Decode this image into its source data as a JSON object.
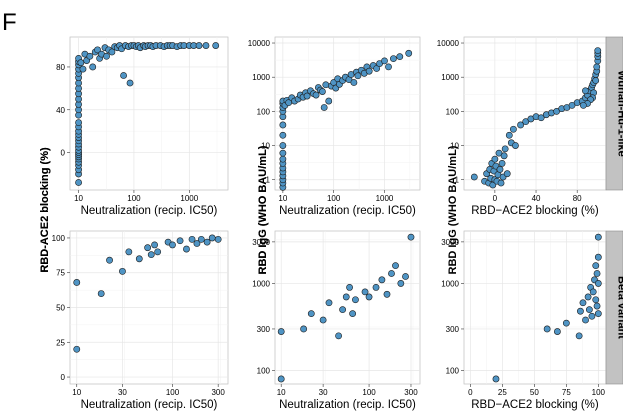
{
  "figure": {
    "panel_letter": "F",
    "strips": [
      "Wuhan-Hu-1-like",
      "Beta variant"
    ],
    "colors": {
      "point_fill": "#4f94c4",
      "point_stroke": "#1c1c1c",
      "strip_bg": "#c2c2c2",
      "grid": "#e6e6e6"
    }
  },
  "chart_data": [
    {
      "type": "scatter",
      "row": "Wuhan-Hu-1-like",
      "col": 1,
      "xlabel": "Neutralization (recip. IC50)",
      "ylabel": "RBD-ACE2 blocking (%)",
      "xscale": "log",
      "xlim": [
        7,
        5000
      ],
      "xticks": [
        10,
        100,
        1000
      ],
      "xticklabels": [
        "10",
        "100",
        "1000"
      ],
      "yscale": "linear",
      "ylim": [
        -35,
        108
      ],
      "yticks": [
        0,
        40,
        80
      ],
      "yticklabels": [
        "0",
        "40",
        "80"
      ],
      "points": [
        [
          10,
          -28
        ],
        [
          10,
          -20
        ],
        [
          10,
          -16
        ],
        [
          10,
          -12
        ],
        [
          10,
          -9
        ],
        [
          10,
          -6
        ],
        [
          10,
          -4
        ],
        [
          10,
          -2
        ],
        [
          10,
          0
        ],
        [
          10,
          2
        ],
        [
          10,
          5
        ],
        [
          10,
          8
        ],
        [
          10,
          11
        ],
        [
          10,
          14
        ],
        [
          10,
          17
        ],
        [
          10,
          20
        ],
        [
          10,
          24
        ],
        [
          10,
          28
        ],
        [
          10,
          35
        ],
        [
          10,
          40
        ],
        [
          10,
          45
        ],
        [
          10,
          50
        ],
        [
          10,
          55
        ],
        [
          10,
          60
        ],
        [
          10,
          65
        ],
        [
          10,
          70
        ],
        [
          10,
          74
        ],
        [
          10,
          78
        ],
        [
          10,
          82
        ],
        [
          10,
          85
        ],
        [
          10,
          88
        ],
        [
          11,
          84
        ],
        [
          12,
          78
        ],
        [
          13,
          92
        ],
        [
          14,
          86
        ],
        [
          16,
          90
        ],
        [
          18,
          80
        ],
        [
          20,
          94
        ],
        [
          22,
          96
        ],
        [
          24,
          88
        ],
        [
          26,
          92
        ],
        [
          30,
          98
        ],
        [
          32,
          90
        ],
        [
          35,
          96
        ],
        [
          40,
          94
        ],
        [
          45,
          99
        ],
        [
          50,
          98
        ],
        [
          55,
          100
        ],
        [
          60,
          97
        ],
        [
          65,
          72
        ],
        [
          70,
          100
        ],
        [
          80,
          99
        ],
        [
          85,
          65
        ],
        [
          90,
          100
        ],
        [
          100,
          100
        ],
        [
          110,
          99
        ],
        [
          120,
          100
        ],
        [
          130,
          98
        ],
        [
          150,
          100
        ],
        [
          160,
          99
        ],
        [
          180,
          100
        ],
        [
          200,
          100
        ],
        [
          220,
          99
        ],
        [
          250,
          100
        ],
        [
          300,
          100
        ],
        [
          350,
          99
        ],
        [
          400,
          100
        ],
        [
          450,
          100
        ],
        [
          500,
          100
        ],
        [
          600,
          99
        ],
        [
          700,
          100
        ],
        [
          800,
          100
        ],
        [
          1000,
          100
        ],
        [
          1200,
          100
        ],
        [
          1500,
          100
        ],
        [
          2000,
          100
        ],
        [
          3000,
          100
        ]
      ]
    },
    {
      "type": "scatter",
      "row": "Wuhan-Hu-1-like",
      "col": 2,
      "xlabel": "Neutralization (recip. IC50)",
      "ylabel": "RBD IgG (WHO BAU/mL)",
      "xscale": "log",
      "xlim": [
        7,
        5000
      ],
      "xticks": [
        10,
        100,
        1000
      ],
      "xticklabels": [
        "10",
        "100",
        "1000"
      ],
      "yscale": "log",
      "ylim": [
        0.5,
        15000
      ],
      "yticks": [
        1,
        10,
        100,
        1000,
        10000
      ],
      "yticklabels": [
        "1",
        "10",
        "100",
        "1000",
        "10000"
      ],
      "points": [
        [
          10,
          0.6
        ],
        [
          10,
          0.8
        ],
        [
          10,
          1
        ],
        [
          10,
          1.3
        ],
        [
          10,
          1.7
        ],
        [
          10,
          2.2
        ],
        [
          10,
          3
        ],
        [
          10,
          4
        ],
        [
          10,
          6
        ],
        [
          10,
          10
        ],
        [
          10,
          20
        ],
        [
          10,
          40
        ],
        [
          10,
          70
        ],
        [
          10,
          100
        ],
        [
          10,
          130
        ],
        [
          10,
          170
        ],
        [
          10,
          200
        ],
        [
          11,
          150
        ],
        [
          12,
          210
        ],
        [
          13,
          180
        ],
        [
          15,
          250
        ],
        [
          17,
          200
        ],
        [
          20,
          230
        ],
        [
          22,
          300
        ],
        [
          25,
          260
        ],
        [
          28,
          350
        ],
        [
          30,
          280
        ],
        [
          35,
          400
        ],
        [
          40,
          330
        ],
        [
          45,
          300
        ],
        [
          50,
          500
        ],
        [
          55,
          420
        ],
        [
          60,
          380
        ],
        [
          65,
          130
        ],
        [
          70,
          600
        ],
        [
          80,
          200
        ],
        [
          90,
          550
        ],
        [
          100,
          700
        ],
        [
          110,
          480
        ],
        [
          120,
          900
        ],
        [
          130,
          620
        ],
        [
          150,
          800
        ],
        [
          170,
          1000
        ],
        [
          200,
          850
        ],
        [
          220,
          1200
        ],
        [
          250,
          700
        ],
        [
          280,
          1400
        ],
        [
          300,
          1100
        ],
        [
          350,
          1600
        ],
        [
          400,
          1300
        ],
        [
          450,
          2000
        ],
        [
          500,
          1500
        ],
        [
          600,
          2200
        ],
        [
          700,
          1800
        ],
        [
          800,
          2500
        ],
        [
          1000,
          3000
        ],
        [
          1200,
          2000
        ],
        [
          1500,
          3500
        ],
        [
          2000,
          4000
        ],
        [
          3000,
          5000
        ]
      ]
    },
    {
      "type": "scatter",
      "row": "Wuhan-Hu-1-like",
      "col": 3,
      "xlabel": "RBD−ACE2 blocking (%)",
      "ylabel": "",
      "xscale": "linear",
      "xlim": [
        -30,
        108
      ],
      "xticks": [
        0,
        40,
        80
      ],
      "xticklabels": [
        "0",
        "40",
        "80"
      ],
      "yscale": "log",
      "ylim": [
        0.5,
        15000
      ],
      "yticks": [
        1,
        10,
        100,
        1000,
        10000
      ],
      "yticklabels": [
        "1",
        "10",
        "100",
        "1000",
        "10000"
      ],
      "points": [
        [
          -20,
          1.2
        ],
        [
          -10,
          0.9
        ],
        [
          -8,
          1.5
        ],
        [
          -6,
          0.8
        ],
        [
          -5,
          2
        ],
        [
          -4,
          1.1
        ],
        [
          -3,
          3
        ],
        [
          -2,
          0.7
        ],
        [
          -1,
          1.8
        ],
        [
          0,
          4
        ],
        [
          0,
          1
        ],
        [
          1,
          2.5
        ],
        [
          2,
          0.9
        ],
        [
          3,
          1.4
        ],
        [
          4,
          6
        ],
        [
          5,
          2
        ],
        [
          6,
          0.8
        ],
        [
          7,
          3
        ],
        [
          8,
          1.2
        ],
        [
          9,
          5
        ],
        [
          10,
          8
        ],
        [
          12,
          1.5
        ],
        [
          14,
          20
        ],
        [
          16,
          12
        ],
        [
          18,
          30
        ],
        [
          20,
          10
        ],
        [
          25,
          40
        ],
        [
          30,
          50
        ],
        [
          35,
          60
        ],
        [
          40,
          70
        ],
        [
          45,
          65
        ],
        [
          50,
          80
        ],
        [
          55,
          90
        ],
        [
          60,
          100
        ],
        [
          65,
          120
        ],
        [
          70,
          130
        ],
        [
          75,
          150
        ],
        [
          80,
          180
        ],
        [
          85,
          200
        ],
        [
          88,
          250
        ],
        [
          90,
          300
        ],
        [
          92,
          400
        ],
        [
          94,
          500
        ],
        [
          95,
          600
        ],
        [
          96,
          700
        ],
        [
          97,
          900
        ],
        [
          98,
          1200
        ],
        [
          99,
          1500
        ],
        [
          99,
          2000
        ],
        [
          100,
          3000
        ],
        [
          100,
          4000
        ],
        [
          100,
          5000
        ],
        [
          100,
          6000
        ],
        [
          98,
          800
        ],
        [
          96,
          350
        ],
        [
          95,
          250
        ],
        [
          93,
          220
        ],
        [
          90,
          170
        ],
        [
          88,
          400
        ],
        [
          86,
          150
        ]
      ]
    },
    {
      "type": "scatter",
      "row": "Beta variant",
      "col": 1,
      "xlabel": "Neutralization (recip. IC50)",
      "ylabel": "RBD-ACE2 blocking (%)",
      "xscale": "log",
      "xlim": [
        8.5,
        380
      ],
      "xticks": [
        10,
        30,
        100,
        300
      ],
      "xticklabels": [
        "10",
        "30",
        "100",
        "300"
      ],
      "yscale": "linear",
      "ylim": [
        -5,
        105
      ],
      "yticks": [
        0,
        25,
        50,
        75,
        100
      ],
      "yticklabels": [
        "0",
        "25",
        "50",
        "75",
        "100"
      ],
      "points": [
        [
          10,
          20
        ],
        [
          10,
          68
        ],
        [
          18,
          60
        ],
        [
          22,
          84
        ],
        [
          30,
          76
        ],
        [
          35,
          90
        ],
        [
          45,
          85
        ],
        [
          55,
          93
        ],
        [
          60,
          88
        ],
        [
          65,
          95
        ],
        [
          70,
          90
        ],
        [
          90,
          97
        ],
        [
          100,
          95
        ],
        [
          120,
          98
        ],
        [
          140,
          92
        ],
        [
          160,
          99
        ],
        [
          180,
          96
        ],
        [
          200,
          99
        ],
        [
          230,
          97
        ],
        [
          260,
          100
        ],
        [
          300,
          99
        ]
      ]
    },
    {
      "type": "scatter",
      "row": "Beta variant",
      "col": 2,
      "xlabel": "Neutralization (recip. IC50)",
      "ylabel": "RBD IgG (WHO BAU/mL)",
      "xscale": "log",
      "xlim": [
        8.5,
        380
      ],
      "xticks": [
        10,
        30,
        100,
        300
      ],
      "xticklabels": [
        "10",
        "30",
        "100",
        "300"
      ],
      "yscale": "log",
      "ylim": [
        70,
        4000
      ],
      "yticks": [
        100,
        300,
        1000,
        3000
      ],
      "yticklabels": [
        "100",
        "300",
        "1000",
        "3000"
      ],
      "points": [
        [
          10,
          80
        ],
        [
          10,
          280
        ],
        [
          18,
          300
        ],
        [
          22,
          450
        ],
        [
          30,
          380
        ],
        [
          35,
          600
        ],
        [
          45,
          250
        ],
        [
          50,
          500
        ],
        [
          55,
          700
        ],
        [
          60,
          900
        ],
        [
          65,
          450
        ],
        [
          70,
          650
        ],
        [
          90,
          800
        ],
        [
          100,
          700
        ],
        [
          120,
          900
        ],
        [
          140,
          1100
        ],
        [
          160,
          750
        ],
        [
          180,
          1300
        ],
        [
          200,
          1600
        ],
        [
          230,
          1000
        ],
        [
          260,
          1200
        ],
        [
          300,
          3400
        ]
      ]
    },
    {
      "type": "scatter",
      "row": "Beta variant",
      "col": 3,
      "xlabel": "RBD−ACE2 blocking (%)",
      "ylabel": "",
      "xscale": "linear",
      "xlim": [
        -5,
        106
      ],
      "xticks": [
        0,
        25,
        50,
        75,
        100
      ],
      "xticklabels": [
        "0",
        "25",
        "50",
        "75",
        "100"
      ],
      "yscale": "log",
      "ylim": [
        70,
        4000
      ],
      "yticks": [
        100,
        300,
        1000,
        3000
      ],
      "yticklabels": [
        "100",
        "300",
        "1000",
        "3000"
      ],
      "points": [
        [
          20,
          80
        ],
        [
          60,
          300
        ],
        [
          68,
          280
        ],
        [
          75,
          350
        ],
        [
          85,
          250
        ],
        [
          86,
          480
        ],
        [
          88,
          600
        ],
        [
          90,
          380
        ],
        [
          92,
          700
        ],
        [
          93,
          500
        ],
        [
          94,
          900
        ],
        [
          95,
          420
        ],
        [
          96,
          800
        ],
        [
          97,
          1100
        ],
        [
          98,
          650
        ],
        [
          98,
          1600
        ],
        [
          99,
          1300
        ],
        [
          99,
          550
        ],
        [
          100,
          1000
        ],
        [
          100,
          2000
        ],
        [
          100,
          3400
        ],
        [
          100,
          450
        ]
      ]
    }
  ]
}
